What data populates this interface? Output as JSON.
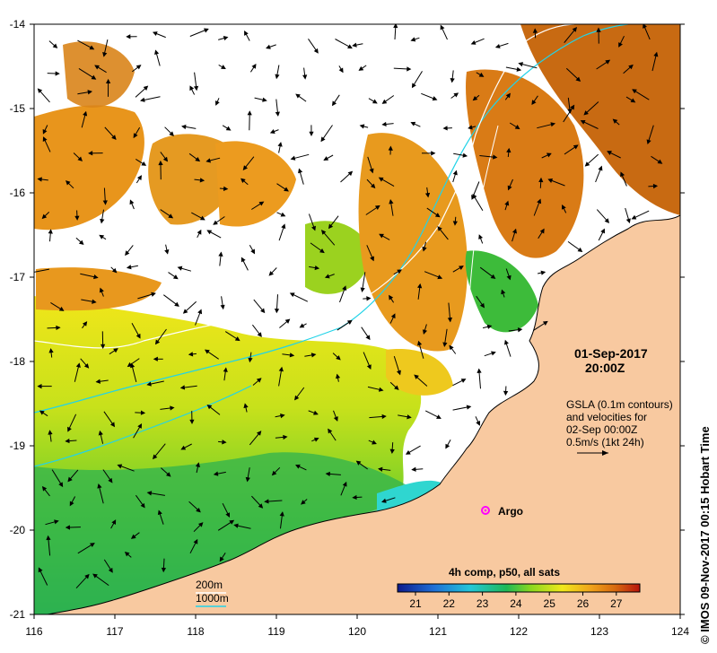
{
  "map": {
    "lon_ticks": [
      "116",
      "117",
      "118",
      "119",
      "120",
      "121",
      "122",
      "123",
      "124"
    ],
    "lat_ticks": [
      "-14",
      "-15",
      "-16",
      "-17",
      "-18",
      "-19",
      "-20",
      "-21"
    ],
    "date": "01-Sep-2017",
    "time": "20:00Z",
    "legend_lines": [
      "GSLA (0.1m contours)",
      "and velocities for",
      "02-Sep 00:00Z",
      "0.5m/s (1kt 24h)"
    ],
    "argo_label": "Argo",
    "contour_200": "200m",
    "contour_1000": "1000m",
    "colorbar_title": "4h comp, p50, all sats",
    "colorbar_ticks": [
      "21",
      "22",
      "23",
      "24",
      "25",
      "26",
      "27"
    ],
    "credit": "© IMOS 09-Nov-2017 00:15 Hobart Time",
    "colors": {
      "land": "#f8c9a0",
      "water_none": "#ffffff",
      "arrow": "#000000",
      "isobath_200": "#ffffff",
      "isobath_1000": "#22d3e8",
      "argo": "#ff00ff"
    }
  }
}
